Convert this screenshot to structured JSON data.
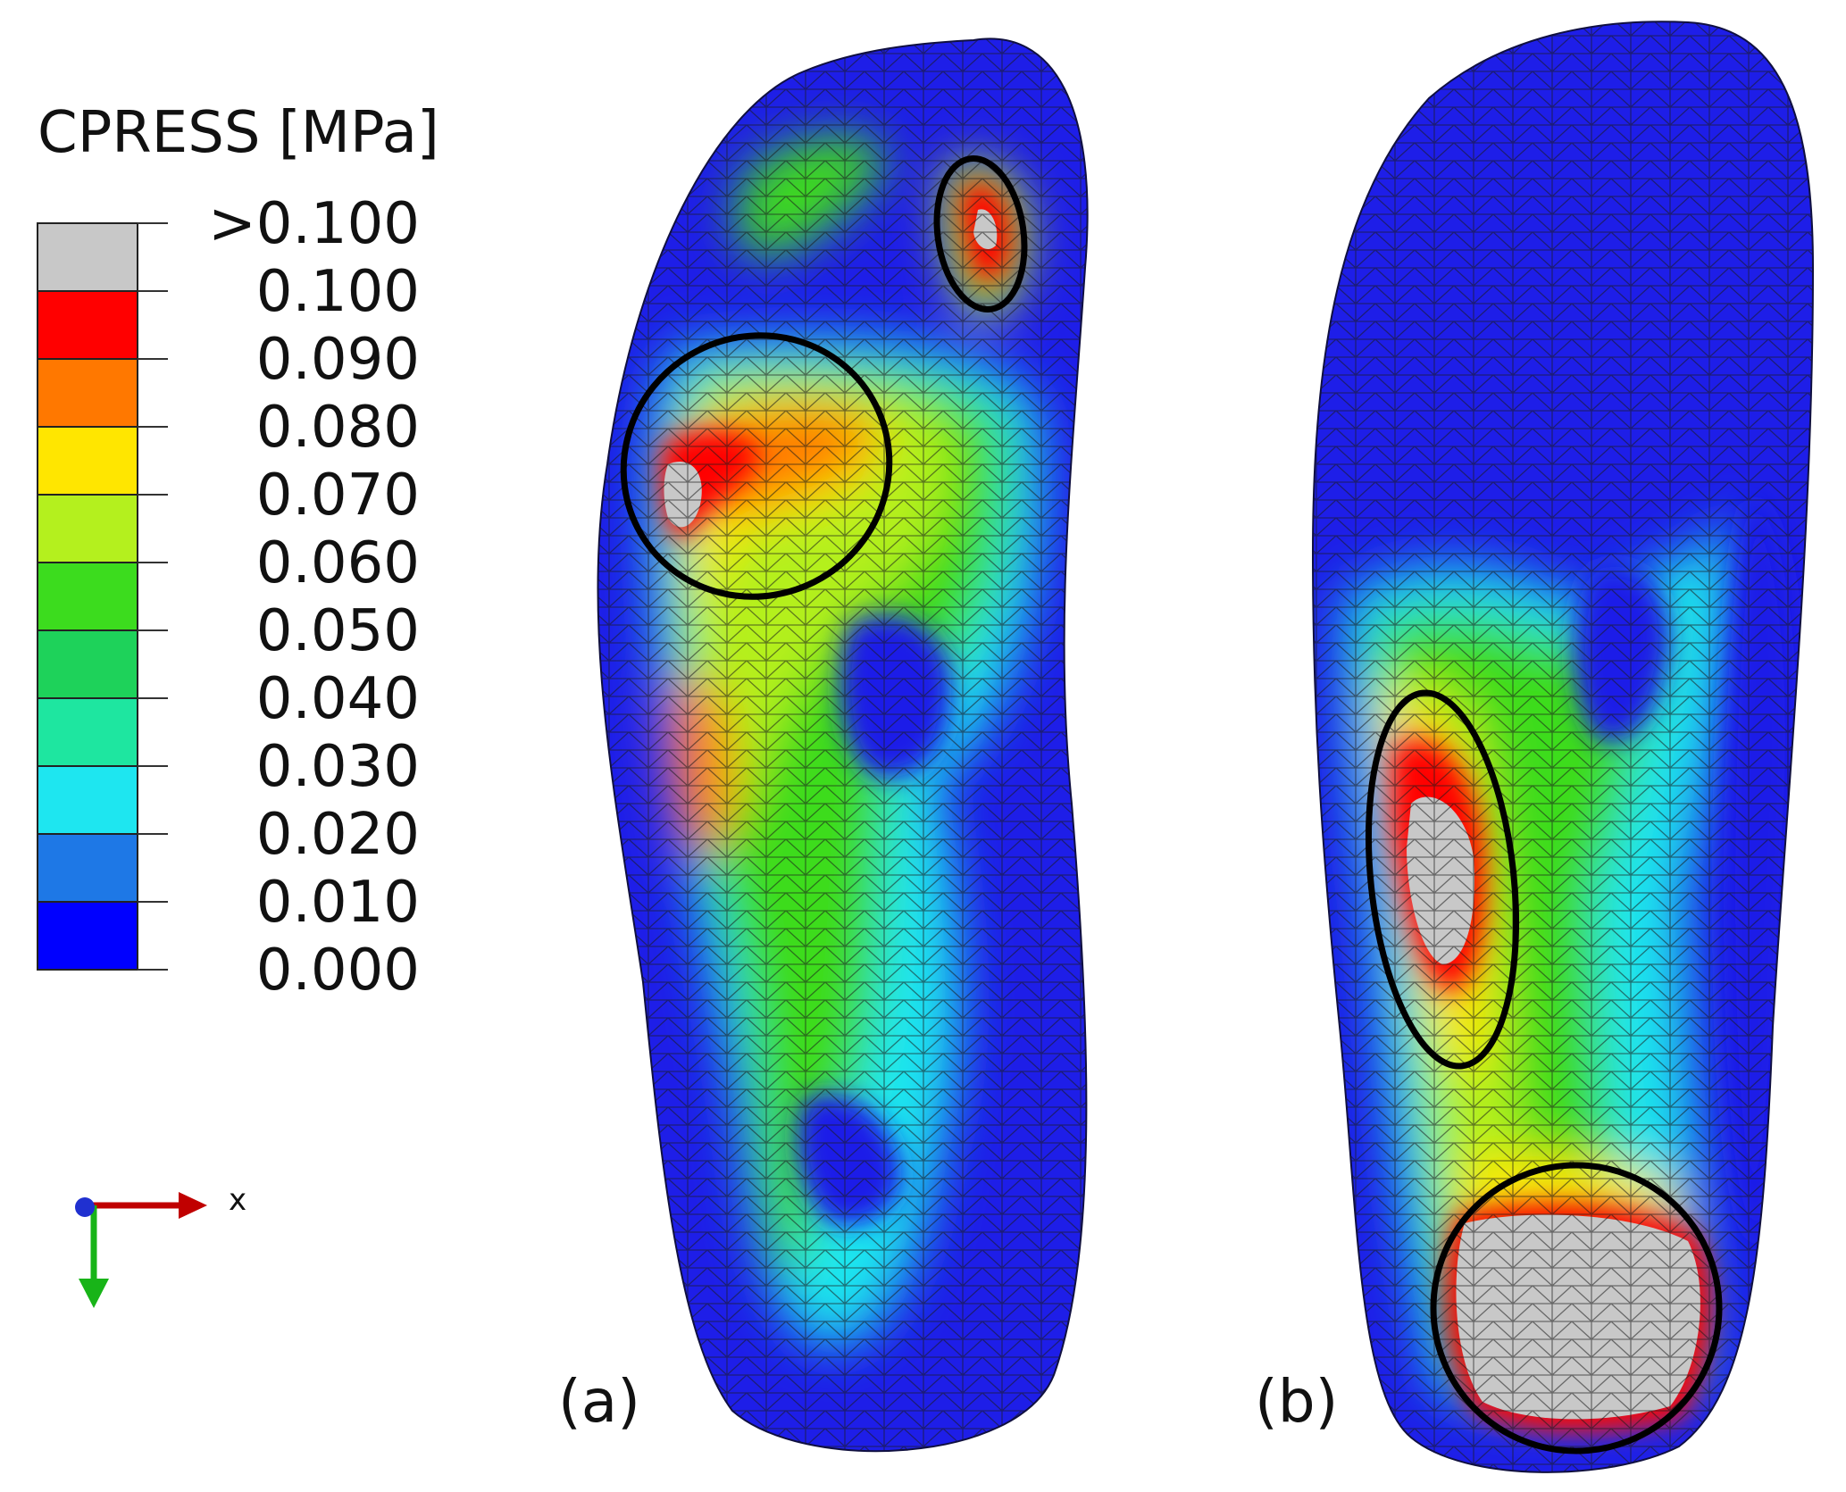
{
  "legend": {
    "title": "CPRESS [MPa]",
    "labels": [
      ">0.100",
      "0.100",
      "0.090",
      "0.080",
      "0.070",
      "0.060",
      "0.050",
      "0.040",
      "0.030",
      "0.020",
      "0.010",
      "0.000"
    ],
    "colors": [
      "#c8c8c8",
      "#ff0000",
      "#ff7800",
      "#ffe600",
      "#b4f01e",
      "#3cdc1e",
      "#1ed25a",
      "#1ee6a0",
      "#1ee6f0",
      "#1e78e6",
      "#0000ff"
    ]
  },
  "axis_triad": {
    "x_label": "x"
  },
  "panels": [
    {
      "id": "a",
      "label": "(a)"
    },
    {
      "id": "b",
      "label": "(b)"
    }
  ],
  "colors": {
    "low": "#1e1ee8",
    "mesh": "#1a1a1a",
    "highlight_ring": "#000000",
    "axis_x": "#c00000",
    "axis_y": "#18b418",
    "axis_z": "#2030d0"
  }
}
